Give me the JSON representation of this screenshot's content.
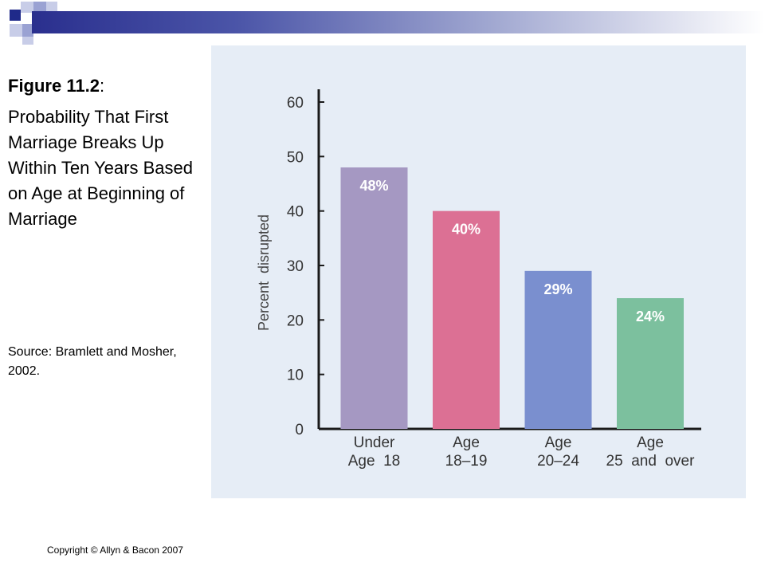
{
  "caption": {
    "figure_label": "Figure 11.2",
    "figure_label_suffix": ":",
    "description": "Probability That First Marriage Breaks Up Within Ten Years Based on Age at Beginning of Marriage",
    "source": "Source: Bramlett and Mosher, 2002."
  },
  "footer": {
    "copyright": "Copyright © Allyn & Bacon 2007"
  },
  "colors": {
    "header_dark": "#2a2f8e",
    "panel_bg": "#e6edf6",
    "bar_under_18": "#a598c2",
    "bar_18_19": "#dc7094",
    "bar_20_24": "#7a8fcf",
    "bar_25_over": "#7cc09e"
  },
  "chart_data": {
    "type": "bar",
    "ylabel": "Percent  disrupted",
    "ylim": [
      0,
      60
    ],
    "yticks": [
      0,
      10,
      20,
      30,
      40,
      50,
      60
    ],
    "grid": false,
    "categories": [
      {
        "line1": "Under",
        "line2": "Age  18"
      },
      {
        "line1": "Age",
        "line2": "18–19"
      },
      {
        "line1": "Age",
        "line2": "20–24"
      },
      {
        "line1": "Age",
        "line2": "25  and  over"
      }
    ],
    "values": [
      48,
      40,
      29,
      24
    ],
    "data_labels": [
      "48%",
      "40%",
      "29%",
      "24%"
    ],
    "bar_colors": [
      "#a598c2",
      "#dc7094",
      "#7a8fcf",
      "#7cc09e"
    ]
  }
}
